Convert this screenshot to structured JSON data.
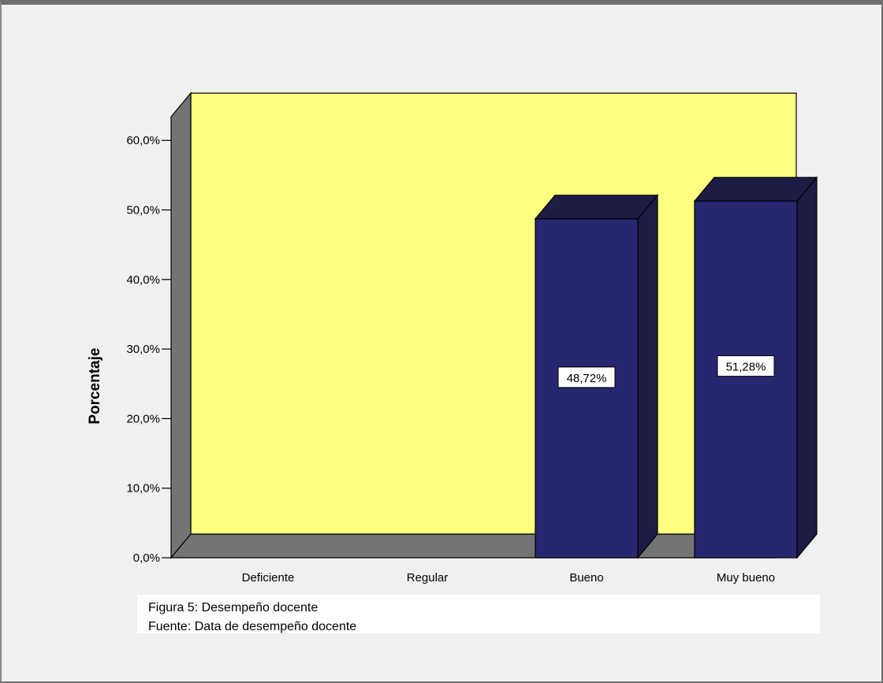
{
  "chart_data": {
    "type": "bar",
    "categories": [
      "Deficiente",
      "Regular",
      "Bueno",
      "Muy bueno"
    ],
    "values": [
      0,
      0,
      48.72,
      51.28
    ],
    "data_labels": [
      "",
      "",
      "48,72%",
      "51,28%"
    ],
    "ylabel": "Porcentaje",
    "ylim": [
      0,
      60
    ],
    "yticks": [
      0,
      10,
      20,
      30,
      40,
      50,
      60
    ],
    "ytick_labels": [
      "0,0%",
      "10,0%",
      "20,0%",
      "30,0%",
      "40,0%",
      "50,0%",
      "60,0%"
    ],
    "three_d": true,
    "colors": {
      "plot_background": "#ffff80",
      "bar_front": "#262770",
      "bar_side": "#1c1c44",
      "bar_top": "#1c1c44",
      "floor": "#747474",
      "left_wall": "#747474"
    }
  },
  "caption": {
    "figure": "Figura 5: Desempeño docente",
    "source": "Fuente: Data de desempeño docente"
  }
}
